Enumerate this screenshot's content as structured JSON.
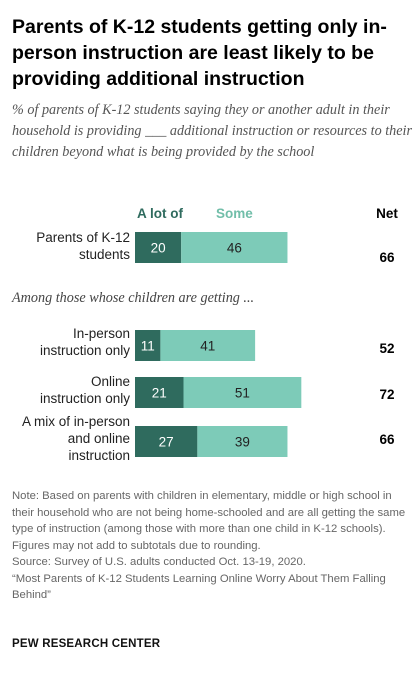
{
  "title": "Parents of K-12 students getting only in-person instruction are least likely to be providing additional instruction",
  "subtitle": "% of parents of K-12 students saying they or another adult in their household is providing ___ additional instruction or resources to their children beyond what is being provided by the school",
  "legend": {
    "alot": "A lot of",
    "some": "Some",
    "net": "Net"
  },
  "group_label": "Among those whose children are getting ...",
  "colors": {
    "alot": "#2f6b5e",
    "some": "#7dcbb8",
    "alot_label": "#2f6b5e",
    "some_label": "#71bea9"
  },
  "chart_data": {
    "type": "bar",
    "orientation": "horizontal",
    "stacked": true,
    "categories": [
      "Parents of K-12 students",
      "In-person instruction only",
      "Online instruction only",
      "A mix of in-person and online instruction"
    ],
    "series": [
      {
        "name": "A lot of",
        "values": [
          20,
          11,
          21,
          27
        ]
      },
      {
        "name": "Some",
        "values": [
          46,
          41,
          51,
          39
        ]
      }
    ],
    "net": [
      66,
      52,
      72,
      66
    ]
  },
  "rows": [
    {
      "label_lines": [
        "Parents of K-12",
        "students"
      ],
      "alot": "20",
      "some": "46",
      "net": "66"
    },
    {
      "label_lines": [
        "In-person",
        "instruction only"
      ],
      "alot": "11",
      "some": "41",
      "net": "52"
    },
    {
      "label_lines": [
        "Online",
        "instruction only"
      ],
      "alot": "21",
      "some": "51",
      "net": "72"
    },
    {
      "label_lines": [
        "A mix of in-person",
        "and online",
        "instruction"
      ],
      "alot": "27",
      "some": "39",
      "net": "66"
    }
  ],
  "notes": {
    "note": "Note: Based on parents with children in elementary, middle or high school in their household who are not being home-schooled and are all getting the same type of instruction (among those with more than one child in K-12 schools). Figures may not add to subtotals due to rounding.",
    "source": "Source: Survey of U.S. adults conducted Oct. 13-19, 2020.",
    "report": "“Most Parents of K-12 Students Learning Online Worry About Them Falling Behind”"
  },
  "brand": "PEW RESEARCH CENTER"
}
